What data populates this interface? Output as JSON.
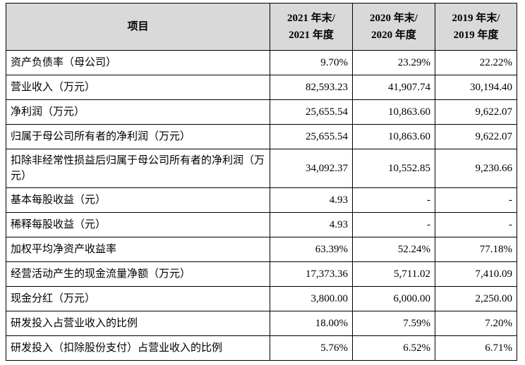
{
  "table": {
    "headers": {
      "item": "项目",
      "col2021": [
        "2021 年末/",
        "2021 年度"
      ],
      "col2020": [
        "2020 年末/",
        "2020 年度"
      ],
      "col2019": [
        "2019 年末/",
        "2019 年度"
      ]
    },
    "rows": [
      {
        "label": "资产负债率（母公司）",
        "v2021": "9.70%",
        "v2020": "23.29%",
        "v2019": "22.22%"
      },
      {
        "label": "营业收入（万元）",
        "v2021": "82,593.23",
        "v2020": "41,907.74",
        "v2019": "30,194.40"
      },
      {
        "label": "净利润（万元）",
        "v2021": "25,655.54",
        "v2020": "10,863.60",
        "v2019": "9,622.07"
      },
      {
        "label": "归属于母公司所有者的净利润（万元）",
        "v2021": "25,655.54",
        "v2020": "10,863.60",
        "v2019": "9,622.07"
      },
      {
        "label": "扣除非经常性损益后归属于母公司所有者的净利润（万元）",
        "v2021": "34,092.37",
        "v2020": "10,552.85",
        "v2019": "9,230.66"
      },
      {
        "label": "基本每股收益（元）",
        "v2021": "4.93",
        "v2020": "-",
        "v2019": "-"
      },
      {
        "label": "稀释每股收益（元）",
        "v2021": "4.93",
        "v2020": "-",
        "v2019": "-"
      },
      {
        "label": "加权平均净资产收益率",
        "v2021": "63.39%",
        "v2020": "52.24%",
        "v2019": "77.18%"
      },
      {
        "label": "经营活动产生的现金流量净额（万元）",
        "v2021": "17,373.36",
        "v2020": "5,711.02",
        "v2019": "7,410.09"
      },
      {
        "label": "现金分红（万元）",
        "v2021": "3,800.00",
        "v2020": "6,000.00",
        "v2019": "2,250.00"
      },
      {
        "label": "研发投入占营业收入的比例",
        "v2021": "18.00%",
        "v2020": "7.59%",
        "v2019": "7.20%"
      },
      {
        "label": "研发投入（扣除股份支付）占营业收入的比例",
        "v2021": "5.76%",
        "v2020": "6.52%",
        "v2019": "6.71%"
      }
    ]
  }
}
